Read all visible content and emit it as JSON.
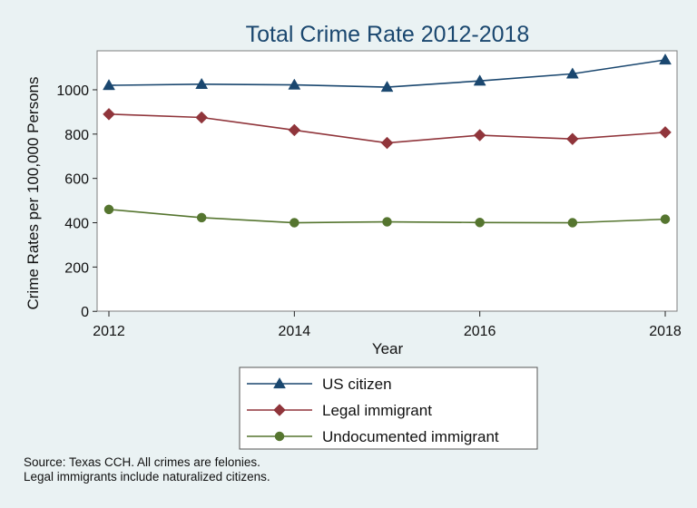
{
  "chart_data": {
    "type": "line",
    "title": "Total Crime Rate 2012-2018",
    "xlabel": "Year",
    "ylabel": "Crime Rates per 100,000 Persons",
    "x": [
      2012,
      2013,
      2014,
      2015,
      2016,
      2017,
      2018
    ],
    "xticks": [
      "2012",
      "2014",
      "2016",
      "2018"
    ],
    "yticks": [
      "0",
      "200",
      "400",
      "600",
      "800",
      "1000"
    ],
    "xlim": [
      2012,
      2018
    ],
    "ylim": [
      -40,
      1180
    ],
    "grid": false,
    "legend_position": "bottom",
    "series": [
      {
        "name": "US citizen",
        "marker": "triangle",
        "color": "#1a476f",
        "values": [
          1020,
          1025,
          1022,
          1012,
          1040,
          1072,
          1135
        ]
      },
      {
        "name": "Legal immigrant",
        "marker": "diamond",
        "color": "#90353b",
        "values": [
          890,
          875,
          818,
          760,
          795,
          778,
          808
        ]
      },
      {
        "name": "Undocumented immigrant",
        "marker": "circle",
        "color": "#55752f",
        "values": [
          460,
          423,
          400,
          404,
          401,
          400,
          416
        ]
      }
    ],
    "notes": [
      "Source: Texas CCH. All crimes are felonies.",
      "Legal immigrants include naturalized citizens."
    ]
  }
}
